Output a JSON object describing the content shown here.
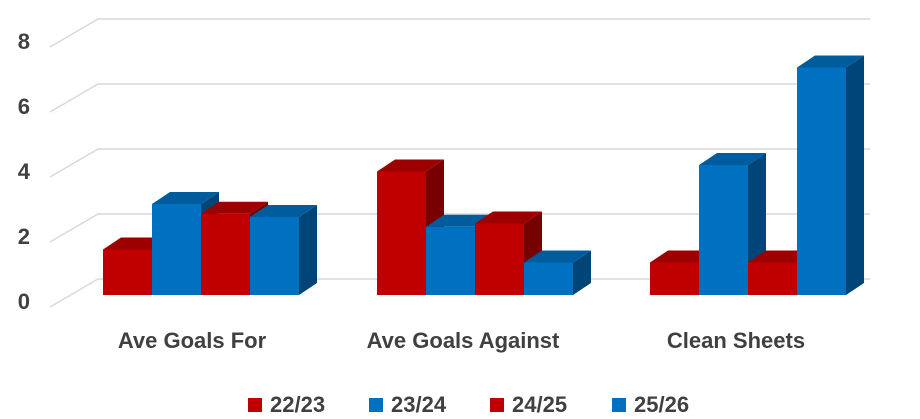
{
  "chart_data": {
    "type": "bar",
    "categories": [
      "Ave Goals For",
      "Ave Goals Against",
      "Clean Sheets"
    ],
    "series": [
      {
        "name": "22/23",
        "color": "#C00000",
        "values": [
          1.4,
          3.8,
          1.0
        ]
      },
      {
        "name": "23/24",
        "color": "#0070C0",
        "values": [
          2.8,
          2.1,
          4.0
        ]
      },
      {
        "name": "24/25",
        "color": "#C00000",
        "values": [
          2.5,
          2.2,
          1.0
        ]
      },
      {
        "name": "25/26",
        "color": "#0070C0",
        "values": [
          2.4,
          1.0,
          7.0
        ]
      }
    ],
    "ylim": [
      0,
      8
    ],
    "yticks": [
      "0",
      "2",
      "4",
      "6",
      "8"
    ],
    "grid": true,
    "legend_position": "bottom",
    "style": "3d-clustered-column"
  }
}
